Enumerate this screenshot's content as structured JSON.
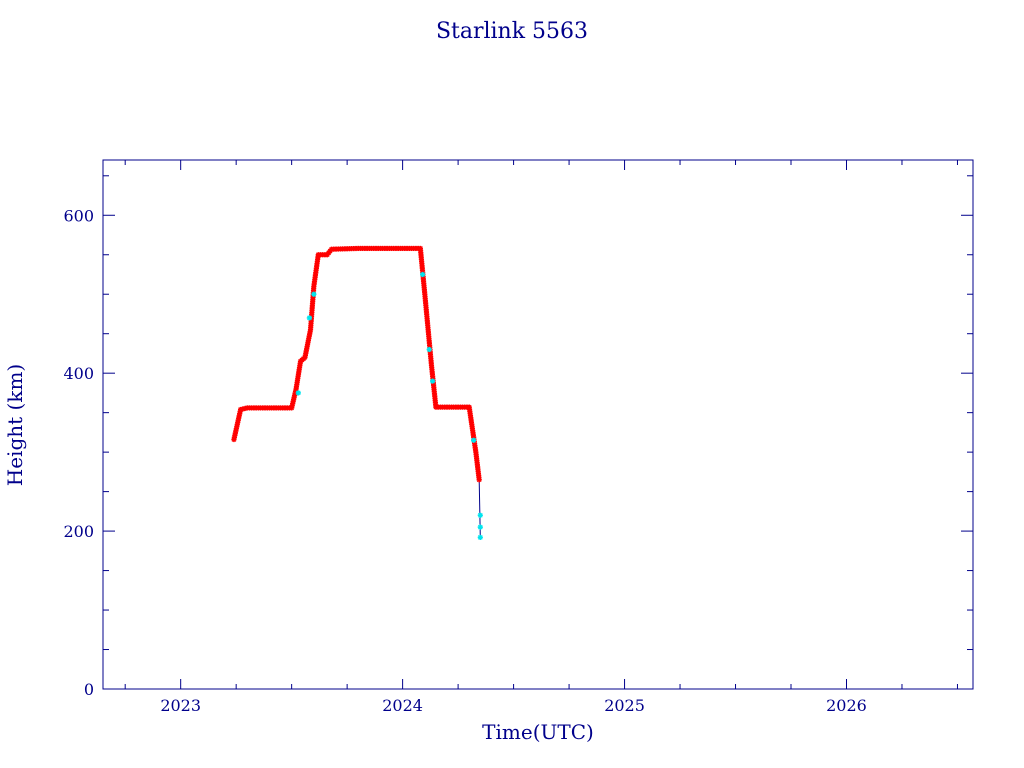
{
  "chart_data": {
    "type": "scatter",
    "title": "Starlink 5563",
    "xlabel": "Time(UTC)",
    "ylabel": "Height (km)",
    "xlim": [
      2022.65,
      2026.57
    ],
    "ylim": [
      0,
      670
    ],
    "x_major_ticks": [
      2023,
      2024,
      2025,
      2026
    ],
    "x_tick_labels": [
      "2023",
      "2024",
      "2025",
      "2026"
    ],
    "y_major_ticks": [
      0,
      200,
      400,
      600
    ],
    "y_tick_labels": [
      "0",
      "200",
      "400",
      "600"
    ],
    "grid": false,
    "colors": {
      "axis": "#00008b",
      "marker_primary": "#ff0000",
      "marker_secondary": "#00e5ee",
      "line": "#00008b"
    },
    "series": [
      {
        "x": [
          2023.24,
          2023.27,
          2023.3,
          2023.36,
          2023.42,
          2023.5,
          2023.52,
          2023.54,
          2023.56,
          2023.585,
          2023.6,
          2023.62,
          2023.66,
          2023.68,
          2023.8,
          2023.95,
          2024.08,
          2024.1,
          2024.13,
          2024.15,
          2024.2,
          2024.3,
          2024.33,
          2024.345
        ],
        "y": [
          316,
          354,
          356,
          356,
          356,
          356,
          380,
          415,
          420,
          455,
          510,
          550,
          550,
          557,
          558,
          558,
          558,
          500,
          410,
          357,
          357,
          357,
          300,
          265
        ]
      },
      {
        "x": [
          2023.53,
          2023.58,
          2023.6,
          2024.09,
          2024.12,
          2024.135,
          2024.32,
          2024.35,
          2024.35,
          2024.35
        ],
        "y": [
          375,
          470,
          500,
          525,
          430,
          390,
          315,
          220,
          205,
          192
        ]
      }
    ]
  }
}
